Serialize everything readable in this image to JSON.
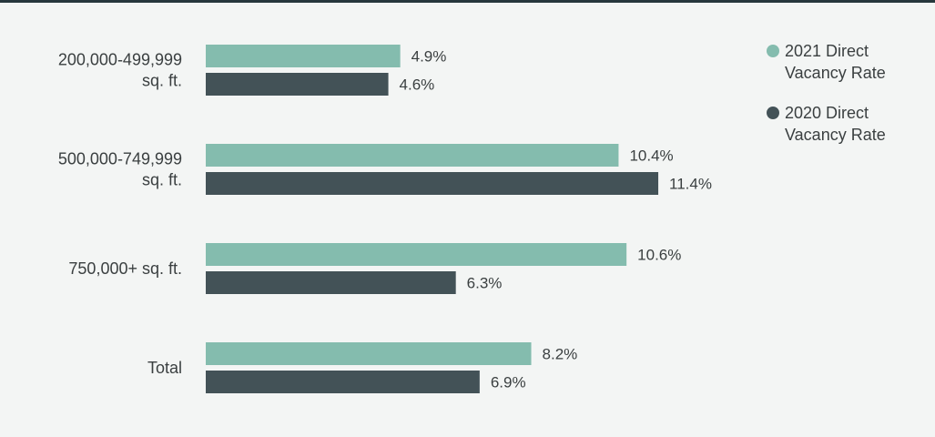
{
  "chart_data": {
    "type": "bar",
    "orientation": "horizontal",
    "categories": [
      "200,000-499,999 sq. ft.",
      "500,000-749,999 sq. ft.",
      "750,000+ sq. ft.",
      "Total"
    ],
    "series": [
      {
        "name": "2021 Direct Vacancy Rate",
        "color": "#84bcae",
        "values": [
          4.9,
          10.4,
          10.6,
          8.2
        ],
        "labels": [
          "4.9%",
          "10.4%",
          "10.6%",
          "8.2%"
        ]
      },
      {
        "name": "2020 Direct Vacancy Rate",
        "color": "#435257",
        "values": [
          4.6,
          11.4,
          6.3,
          6.9
        ],
        "labels": [
          "4.6%",
          "11.4%",
          "6.3%",
          "6.9%"
        ]
      }
    ],
    "legend_position": "top-right",
    "grid": false,
    "axes_visible": false
  }
}
